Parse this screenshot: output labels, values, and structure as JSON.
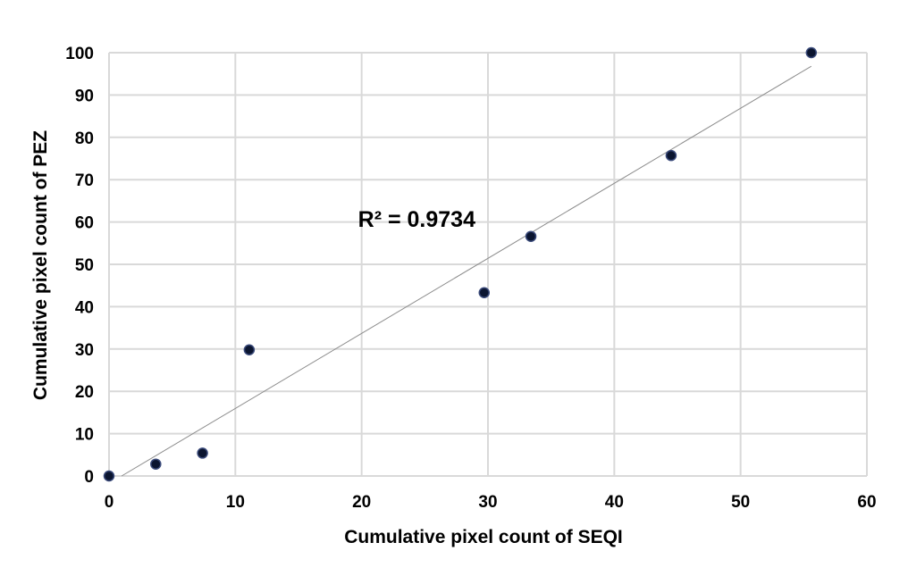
{
  "chart_data": {
    "type": "scatter",
    "xlabel": "Cumulative pixel count of SEQI",
    "ylabel": "Cumulative pixel count of PEZ",
    "xlim": [
      0,
      60
    ],
    "ylim": [
      0,
      100
    ],
    "x_ticks": [
      "0",
      "10",
      "20",
      "30",
      "40",
      "50",
      "60"
    ],
    "y_ticks": [
      "0",
      "10",
      "20",
      "30",
      "40",
      "50",
      "60",
      "70",
      "80",
      "90",
      "100"
    ],
    "grid": true,
    "legend": "none",
    "points": [
      {
        "x": 0,
        "y": 0
      },
      {
        "x": 3.7,
        "y": 2.8
      },
      {
        "x": 7.4,
        "y": 5.4
      },
      {
        "x": 11.1,
        "y": 29.8
      },
      {
        "x": 29.7,
        "y": 43.3
      },
      {
        "x": 33.4,
        "y": 56.6
      },
      {
        "x": 44.5,
        "y": 75.7
      },
      {
        "x": 55.6,
        "y": 100
      }
    ],
    "trendline": {
      "type": "linear",
      "from": {
        "x": 1.0,
        "y": 0
      },
      "to": {
        "x": 55.6,
        "y": 96.8
      }
    },
    "annotation": {
      "text": "R² = 0.9734",
      "x": 20,
      "y": 61
    },
    "colors": {
      "marker": "#0b1530",
      "marker_edge": "#3a4a7a",
      "grid": "#d9d9d9",
      "trend": "#8c8c8c"
    }
  }
}
